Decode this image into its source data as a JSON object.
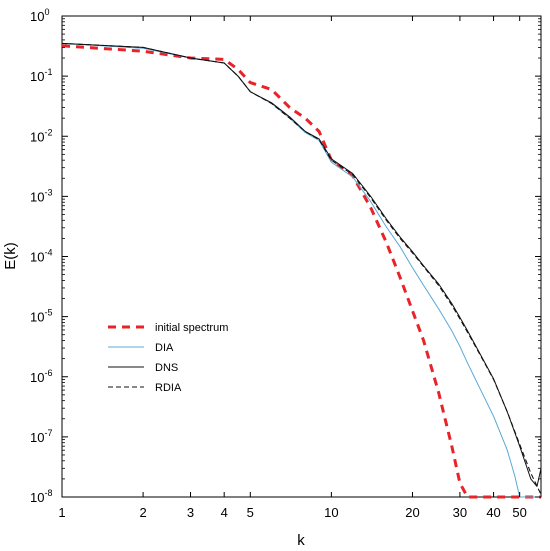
{
  "chart_data": {
    "type": "line",
    "xlabel": "k",
    "ylabel": "E(k)",
    "xscale": "log",
    "yscale": "log",
    "xlim": [
      1,
      60
    ],
    "ylim": [
      1e-08,
      1
    ],
    "grid": false,
    "legend_position": "lower-left",
    "x_ticks": [
      {
        "value": 1,
        "label": "1"
      },
      {
        "value": 2,
        "label": "2"
      },
      {
        "value": 3,
        "label": "3"
      },
      {
        "value": 4,
        "label": "4"
      },
      {
        "value": 5,
        "label": "5"
      },
      {
        "value": 10,
        "label": "10"
      },
      {
        "value": 20,
        "label": "20"
      },
      {
        "value": 30,
        "label": "30"
      },
      {
        "value": 40,
        "label": "40"
      },
      {
        "value": 50,
        "label": "50"
      }
    ],
    "y_ticks": [
      {
        "value": 1,
        "base": "10",
        "exp": "0"
      },
      {
        "value": 0.1,
        "base": "10",
        "exp": "-1"
      },
      {
        "value": 0.01,
        "base": "10",
        "exp": "-2"
      },
      {
        "value": 0.001,
        "base": "10",
        "exp": "-3"
      },
      {
        "value": 0.0001,
        "base": "10",
        "exp": "-4"
      },
      {
        "value": 1e-05,
        "base": "10",
        "exp": "-5"
      },
      {
        "value": 1e-06,
        "base": "10",
        "exp": "-6"
      },
      {
        "value": 1e-07,
        "base": "10",
        "exp": "-7"
      },
      {
        "value": 1e-08,
        "base": "10",
        "exp": "-8"
      }
    ],
    "series": [
      {
        "name": "initial spectrum",
        "color": "#e8232a",
        "style": "dashed-thick",
        "x": [
          1,
          2,
          3,
          4,
          4.5,
          5,
          6,
          7,
          8,
          9,
          10,
          12,
          14,
          16,
          18,
          20,
          22,
          25,
          28,
          30,
          32,
          35,
          40,
          45,
          50,
          55,
          60
        ],
        "y": [
          0.32,
          0.26,
          0.2,
          0.19,
          0.13,
          0.078,
          0.06,
          0.03,
          0.02,
          0.012,
          0.004,
          0.0022,
          0.00065,
          0.00017,
          4.5e-05,
          1.25e-05,
          4e-06,
          5.5e-07,
          7e-08,
          1.7e-08,
          1e-08,
          1e-08,
          1e-08,
          1e-08,
          1e-08,
          1e-08,
          1e-08
        ]
      },
      {
        "name": "DIA",
        "color": "#5aa8d6",
        "style": "solid",
        "x": [
          1,
          2,
          3,
          4,
          4.5,
          5,
          6,
          7,
          8,
          9,
          10,
          12,
          14,
          16,
          18,
          20,
          22,
          25,
          28,
          30,
          32,
          35,
          40,
          45,
          48,
          50,
          55,
          60
        ],
        "y": [
          0.35,
          0.29,
          0.2,
          0.165,
          0.1,
          0.055,
          0.035,
          0.02,
          0.0115,
          0.0085,
          0.0037,
          0.0021,
          0.00082,
          0.00031,
          0.000145,
          6.5e-05,
          3.3e-05,
          1.35e-05,
          5.8e-06,
          3.2e-06,
          1.7e-06,
          7.5e-07,
          2.2e-07,
          6e-08,
          2.2e-08,
          1e-08,
          1e-08,
          1e-08
        ]
      },
      {
        "name": "DNS",
        "color": "#111111",
        "style": "solid",
        "x": [
          1,
          2,
          3,
          4,
          4.5,
          5,
          6,
          7,
          8,
          9,
          10,
          12,
          14,
          16,
          18,
          20,
          22,
          25,
          28,
          30,
          32,
          35,
          40,
          45,
          50,
          55,
          58,
          60
        ],
        "y": [
          0.35,
          0.3,
          0.2,
          0.165,
          0.1,
          0.055,
          0.036,
          0.021,
          0.012,
          0.009,
          0.0042,
          0.0024,
          0.001,
          0.00042,
          0.00021,
          0.00012,
          7e-05,
          3.5e-05,
          1.65e-05,
          9.7e-06,
          5.8e-06,
          2.8e-06,
          9.2e-07,
          2.6e-07,
          7e-08,
          2e-08,
          1.5e-08,
          3e-08
        ]
      },
      {
        "name": "RDIA",
        "color": "#111111",
        "style": "dashed",
        "x": [
          1,
          2,
          3,
          4,
          4.5,
          5,
          6,
          7,
          8,
          9,
          10,
          12,
          14,
          16,
          18,
          20,
          22,
          25,
          28,
          30,
          32,
          35,
          40,
          45,
          50,
          55,
          60
        ],
        "y": [
          0.35,
          0.3,
          0.2,
          0.165,
          0.1,
          0.055,
          0.035,
          0.02,
          0.012,
          0.0088,
          0.004,
          0.0023,
          0.00095,
          0.0004,
          0.0002,
          0.000115,
          6.8e-05,
          3.3e-05,
          1.55e-05,
          9.2e-06,
          5.5e-06,
          2.7e-06,
          9e-07,
          2.6e-07,
          7.5e-08,
          2.5e-08,
          1.1e-08
        ]
      }
    ]
  }
}
